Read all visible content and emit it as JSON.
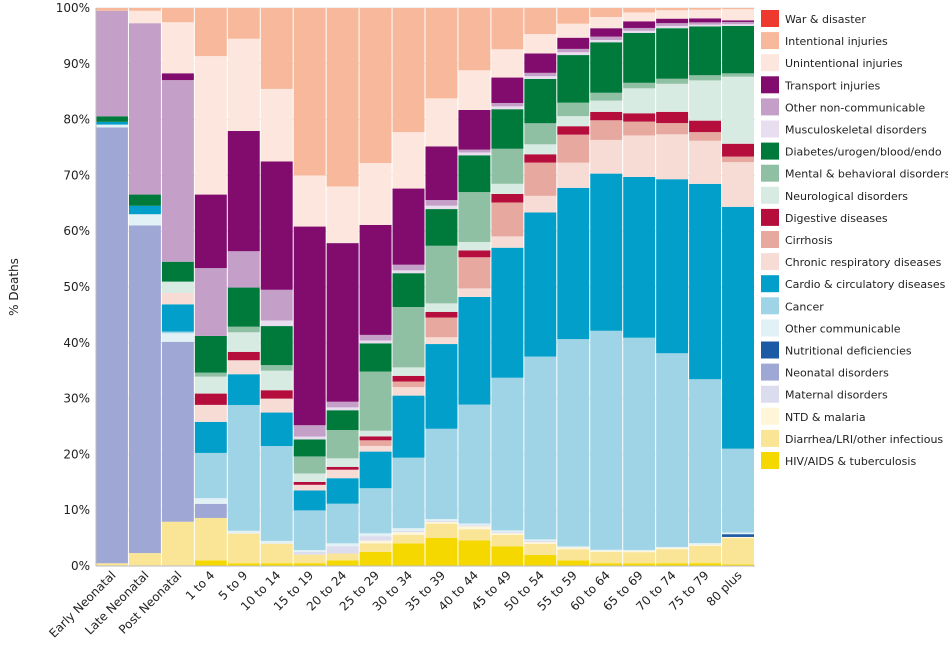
{
  "chart_data": {
    "type": "bar",
    "stacked": true,
    "normalized_100_percent": true,
    "ylabel": "% Deaths",
    "ylim": [
      0,
      100
    ],
    "yticks": [
      "0%",
      "10%",
      "20%",
      "30%",
      "40%",
      "50%",
      "60%",
      "70%",
      "80%",
      "90%",
      "100%"
    ],
    "legend_position": "right",
    "categories": [
      "Early Neonatal",
      "Late Neonatal",
      "Post Neonatal",
      "1 to 4",
      "5 to 9",
      "10 to 14",
      "15 to 19",
      "20 to 24",
      "25 to 29",
      "30 to 34",
      "35 to 39",
      "40 to 44",
      "45 to 49",
      "50 to 54",
      "55 to 59",
      "60 to 64",
      "65 to 69",
      "70 to 74",
      "75 to 79",
      "80 plus"
    ],
    "series": [
      {
        "name": "HIV/AIDS & tuberculosis",
        "color": "#f5d800",
        "values": [
          0,
          0,
          0,
          1,
          0.5,
          0.5,
          0.5,
          1,
          2.5,
          4,
          5,
          4.5,
          3.5,
          2,
          1,
          0.5,
          0.5,
          0.5,
          0.5,
          0.3
        ]
      },
      {
        "name": "Diarrhea/LRI/other infectious",
        "color": "#fae597",
        "values": [
          0.5,
          2.3,
          7.8,
          7.5,
          5.3,
          3.5,
          1.5,
          1.2,
          1.5,
          1.5,
          2.5,
          2,
          2,
          2,
          2,
          2,
          2,
          2.5,
          3,
          4.7
        ]
      },
      {
        "name": "NTD & malaria",
        "color": "#fff6d9",
        "values": [
          0,
          0,
          0,
          0,
          0,
          0,
          0,
          0,
          0.5,
          0.5,
          0.3,
          0.5,
          0.3,
          0.3,
          0.3,
          0.2,
          0.2,
          0.2,
          0.2,
          0.2
        ]
      },
      {
        "name": "Maternal disorders",
        "color": "#dcdcef",
        "values": [
          0,
          0,
          0,
          0,
          0,
          0,
          0.5,
          1.3,
          0.8,
          0.2,
          0.2,
          0.2,
          0.2,
          0.2,
          0,
          0,
          0,
          0,
          0,
          0
        ]
      },
      {
        "name": "Neonatal disorders",
        "color": "#9fa8d5",
        "values": [
          78.5,
          58.3,
          31.7,
          2.5,
          0,
          0,
          0,
          0,
          0,
          0,
          0,
          0,
          0,
          0,
          0,
          0,
          0,
          0,
          0,
          0
        ]
      },
      {
        "name": "Nutritional deficiencies",
        "color": "#1c5aa6",
        "values": [
          0,
          0,
          0,
          0,
          0,
          0,
          0,
          0,
          0,
          0,
          0,
          0,
          0,
          0,
          0,
          0,
          0,
          0,
          0,
          0.5
        ]
      },
      {
        "name": "Other communicable",
        "color": "#e1f1f5",
        "values": [
          0.5,
          2,
          1.5,
          1,
          0.5,
          0.5,
          0.3,
          0.5,
          0.5,
          0.5,
          0.3,
          0.3,
          0.3,
          0.3,
          0.2,
          0.2,
          0.2,
          0.2,
          0.3,
          0.3
        ]
      },
      {
        "name": "Cancer",
        "color": "#9fd3e6",
        "values": [
          0,
          0,
          0.3,
          8,
          22.5,
          17,
          7,
          7,
          8,
          12.5,
          16,
          21,
          27,
          33,
          37,
          39,
          38.3,
          34.5,
          28.5,
          15
        ]
      },
      {
        "name": "Cardio & circulatory diseases",
        "color": "#019fc9",
        "values": [
          0.5,
          1.5,
          4.8,
          5.5,
          5.5,
          6,
          3.5,
          4.5,
          6.5,
          11,
          15,
          19,
          23,
          26,
          27,
          28,
          29,
          31,
          34,
          43.3
        ]
      },
      {
        "name": "Chronic respiratory diseases",
        "color": "#f7dcd6",
        "values": [
          0,
          0,
          2,
          3,
          2.5,
          2.5,
          1,
          1.5,
          1,
          1.5,
          1.2,
          1.5,
          2,
          3,
          4.5,
          6,
          7.5,
          8,
          7.5,
          8
        ]
      },
      {
        "name": "Cirrhosis",
        "color": "#e6a89f",
        "values": [
          0,
          0,
          0,
          0,
          0,
          0,
          0,
          0,
          1,
          1,
          3.5,
          5.5,
          6,
          6,
          5,
          3.5,
          2.5,
          2,
          1.5,
          1
        ]
      },
      {
        "name": "Digestive diseases",
        "color": "#b50d3c",
        "values": [
          0,
          0,
          0,
          2,
          1.5,
          1.5,
          0.5,
          0.5,
          0.7,
          1,
          1,
          1.2,
          1.5,
          1.5,
          1.5,
          1.5,
          1.5,
          2,
          2,
          2.3
        ]
      },
      {
        "name": "Neurological disorders",
        "color": "#d8ebe2",
        "values": [
          0,
          0,
          2,
          3,
          3.5,
          3.5,
          1.5,
          1.5,
          1,
          1.5,
          1.5,
          1.5,
          1.8,
          1.8,
          1.8,
          2,
          4.5,
          5,
          7,
          12
        ]
      },
      {
        "name": "Mental & behavioral disorders",
        "color": "#90c0a4",
        "values": [
          0,
          0,
          0,
          0.7,
          1,
          1,
          3,
          5,
          10.5,
          10.7,
          10.2,
          8.8,
          6.2,
          3.8,
          2.4,
          1.4,
          1,
          0.9,
          0.9,
          0.6
        ]
      },
      {
        "name": "Diabetes/urogen/blood/endo",
        "color": "#007a3b",
        "values": [
          1,
          2,
          3.5,
          6.5,
          7,
          7,
          3,
          3.5,
          5,
          6,
          6.5,
          6.5,
          7,
          8,
          8.5,
          9,
          9,
          9,
          8.5,
          8.5
        ]
      },
      {
        "name": "Musculoskeletal disorders",
        "color": "#e8def0",
        "values": [
          0,
          0,
          0,
          0,
          0,
          1,
          0.5,
          0.5,
          0.5,
          0.5,
          0.6,
          0.5,
          0.5,
          0.5,
          0.5,
          0.4,
          0.4,
          0.4,
          0.3,
          0.3
        ]
      },
      {
        "name": "Other non-communicable",
        "color": "#c49fc7",
        "values": [
          19,
          30.5,
          32,
          12,
          6.5,
          5.5,
          2,
          1,
          1,
          1,
          1,
          0.5,
          0.6,
          0.6,
          0.6,
          0.6,
          0.5,
          0.5,
          0.4,
          0.4
        ]
      },
      {
        "name": "Transport injuries",
        "color": "#820c6e",
        "values": [
          0,
          0,
          1.2,
          13,
          21.5,
          23,
          35,
          28,
          19.5,
          13.5,
          9.5,
          7,
          4.5,
          3.5,
          2,
          1.5,
          1.2,
          0.8,
          0.7,
          0.3
        ]
      },
      {
        "name": "Unintentional injuries",
        "color": "#fde6dd",
        "values": [
          0,
          2.2,
          9,
          24.5,
          16.5,
          13,
          9,
          10,
          11,
          10,
          8.5,
          7,
          5,
          3.5,
          2.5,
          2,
          1.6,
          1.5,
          1.5,
          2
        ]
      },
      {
        "name": "Intentional injuries",
        "color": "#f8b89b",
        "values": [
          0.5,
          0.5,
          2.5,
          8.5,
          5.5,
          14.5,
          29.5,
          31.5,
          27.5,
          22,
          16,
          11,
          7.3,
          4.7,
          2.8,
          1.6,
          0.8,
          0.4,
          0.3,
          0.2
        ]
      },
      {
        "name": "War & disaster",
        "color": "#ee3a2e",
        "values": [
          0,
          0,
          0,
          0,
          0,
          0,
          0,
          0,
          0,
          0,
          0,
          0,
          0,
          0,
          0,
          0,
          0,
          0,
          0,
          0
        ]
      }
    ]
  }
}
